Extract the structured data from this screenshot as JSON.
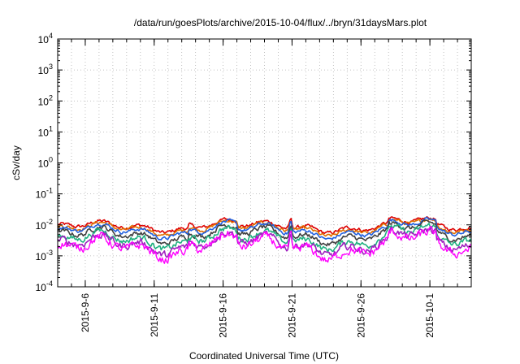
{
  "chart_data": {
    "type": "line",
    "title": "/data/run/goesPlots/archive/2015-10-04/flux/../bryn/31daysMars.plot",
    "xlabel": "Coordinated Universal Time (UTC)",
    "ylabel": "cSv/day",
    "y_scale": "log",
    "ylim": [
      0.0001,
      10000
    ],
    "y_ticks": [
      {
        "base": "10",
        "exp": "4"
      },
      {
        "base": "10",
        "exp": "3"
      },
      {
        "base": "10",
        "exp": "2"
      },
      {
        "base": "10",
        "exp": "1"
      },
      {
        "base": "10",
        "exp": "0"
      },
      {
        "base": "10",
        "exp": "-1"
      },
      {
        "base": "10",
        "exp": "-2"
      },
      {
        "base": "10",
        "exp": "-3"
      },
      {
        "base": "10",
        "exp": "-4"
      }
    ],
    "x_range": [
      "2015-09-04",
      "2015-10-04"
    ],
    "x_ticks": [
      "2015-9-6",
      "2015-9-11",
      "2015-9-16",
      "2015-9-21",
      "2015-9-26",
      "2015-10-1"
    ],
    "grid": true,
    "series": [
      {
        "color": "#dd0000",
        "base": 0.0085,
        "spread": 0.12
      },
      {
        "color": "#e07000",
        "base": 0.0072,
        "spread": 0.12
      },
      {
        "color": "#2060e0",
        "base": 0.0062,
        "spread": 0.12
      },
      {
        "color": "#404040",
        "base": 0.0045,
        "spread": 0.16
      },
      {
        "color": "#20b080",
        "base": 0.0032,
        "spread": 0.2
      },
      {
        "color": "#a020c0",
        "base": 0.0022,
        "spread": 0.24
      },
      {
        "color": "#ff00ff",
        "base": 0.0017,
        "spread": 0.3
      }
    ]
  }
}
